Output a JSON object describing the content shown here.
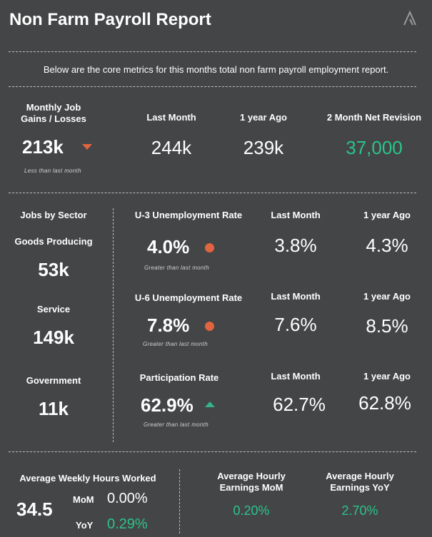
{
  "header": {
    "title": "Non Farm Payroll Report",
    "subtitle": "Below are the core metrics for this months total non farm payroll employment report."
  },
  "top": {
    "job_gains_label": "Monthly Job\nGains / Losses",
    "job_gains_value": "213k",
    "job_gains_note": "Less than last month",
    "last_month_label": "Last Month",
    "last_month_value": "244k",
    "year_ago_label": "1 year Ago",
    "year_ago_value": "239k",
    "revision_label": "2 Month Net Revision",
    "revision_value": "37,000"
  },
  "sectors": {
    "header": "Jobs by Sector",
    "goods_label": "Goods Producing",
    "goods_value": "53k",
    "service_label": "Service",
    "service_value": "149k",
    "government_label": "Government",
    "government_value": "11k"
  },
  "u3": {
    "label": "U-3 Unemployment Rate",
    "value": "4.0%",
    "note": "Greater than last month",
    "last_month_label": "Last Month",
    "last_month_value": "3.8%",
    "year_ago_label": "1 year Ago",
    "year_ago_value": "4.3%"
  },
  "u6": {
    "label": "U-6 Unemployment Rate",
    "value": "7.8%",
    "note": "Greater than last month",
    "last_month_label": "Last Month",
    "last_month_value": "7.6%",
    "year_ago_label": "1 year Ago",
    "year_ago_value": "8.5%"
  },
  "participation": {
    "label": "Participation Rate",
    "value": "62.9%",
    "note": "Greater than last month",
    "last_month_label": "Last Month",
    "last_month_value": "62.7%",
    "year_ago_label": "1 year Ago",
    "year_ago_value": "62.8%"
  },
  "bottom": {
    "hours_label": "Average Weekly Hours Worked",
    "hours_value": "34.5",
    "mom_label": "MoM",
    "mom_value": "0.00%",
    "yoy_label": "YoY",
    "yoy_value": "0.29%",
    "earn_mom_label": "Average Hourly\nEarnings MoM",
    "earn_mom_value": "0.20%",
    "earn_yoy_label": "Average Hourly\nEarnings YoY",
    "earn_yoy_value": "2.70%"
  },
  "colors": {
    "background": "#444547",
    "positive": "#2bc48a",
    "negative": "#e0643f"
  },
  "icons": {
    "logo": "chevron-logo-icon",
    "down": "triangle-down-icon",
    "up": "triangle-up-icon",
    "dot": "circle-dot-icon"
  }
}
